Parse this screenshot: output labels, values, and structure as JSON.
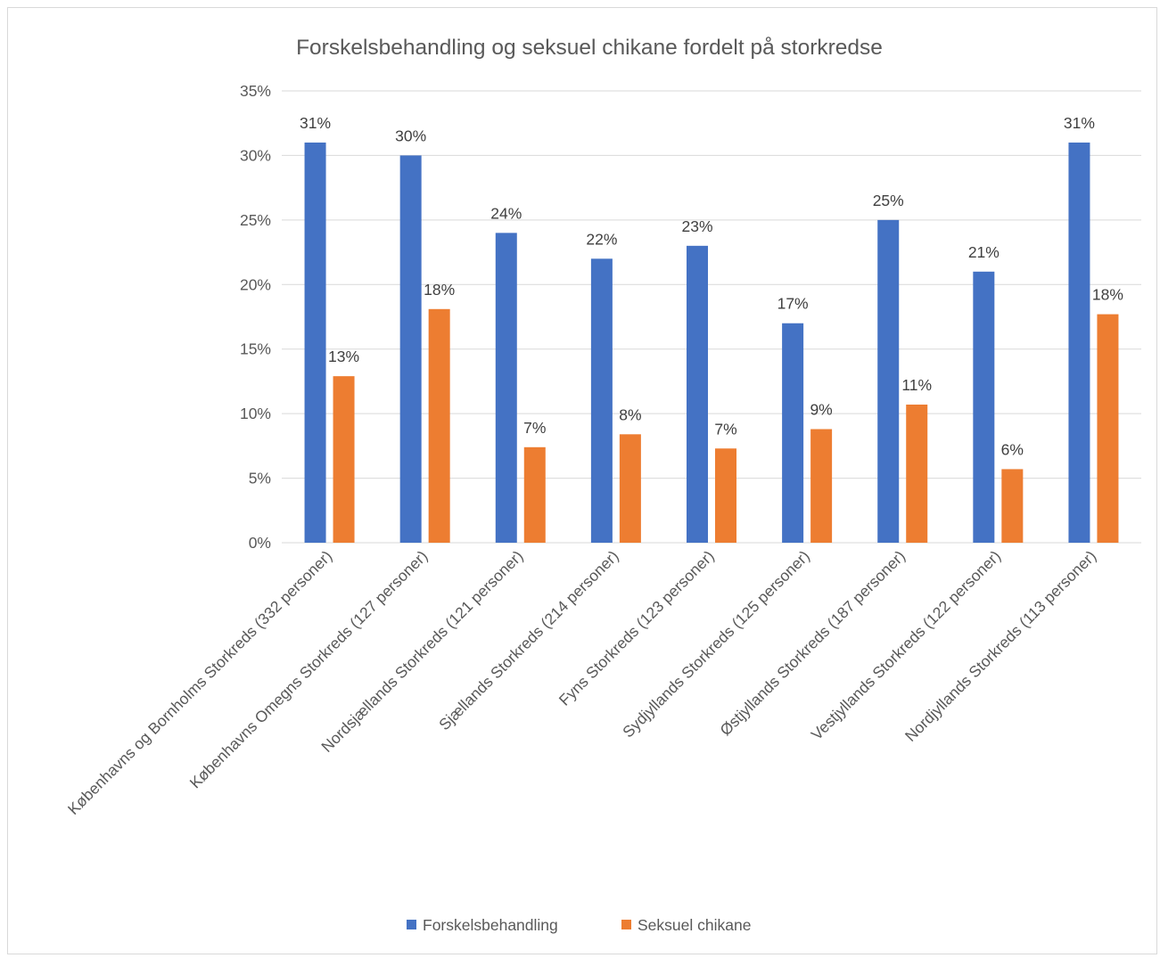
{
  "chart_data": {
    "type": "bar",
    "title": "Forskelsbehandling og seksuel chikane fordelt på storkredse",
    "categories": [
      "Københavns og Bornholms Storkreds (332 personer)",
      "Københavns Omegns Storkreds (127 personer)",
      "Nordsjællands Storkreds (121 personer)",
      "Sjællands Storkreds (214 personer)",
      "Fyns Storkreds (123 personer)",
      "Sydjyllands Storkreds (125 personer)",
      "Østjyllands Storkreds (187 personer)",
      "Vestjyllands Storkreds (122 personer)",
      "Nordjyllands Storkreds (113 personer)"
    ],
    "series": [
      {
        "name": "Forskelsbehandling",
        "color": "#4472C4",
        "values": [
          31,
          30,
          24,
          22,
          23,
          17,
          25,
          21,
          31
        ],
        "labels": [
          "31%",
          "30%",
          "24%",
          "22%",
          "23%",
          "17%",
          "25%",
          "21%",
          "31%"
        ]
      },
      {
        "name": "Seksuel chikane",
        "color": "#ED7D31",
        "values": [
          12.9,
          18.1,
          7.4,
          8.4,
          7.3,
          8.8,
          10.7,
          5.7,
          17.7
        ],
        "labels": [
          "13%",
          "18%",
          "7%",
          "8%",
          "7%",
          "9%",
          "11%",
          "6%",
          "18%"
        ]
      }
    ],
    "yticks": [
      "0%",
      "5%",
      "10%",
      "15%",
      "20%",
      "25%",
      "30%",
      "35%"
    ],
    "ylim": [
      0,
      35
    ],
    "grid": true,
    "legend_position": "bottom",
    "xlabel": "",
    "ylabel": ""
  }
}
